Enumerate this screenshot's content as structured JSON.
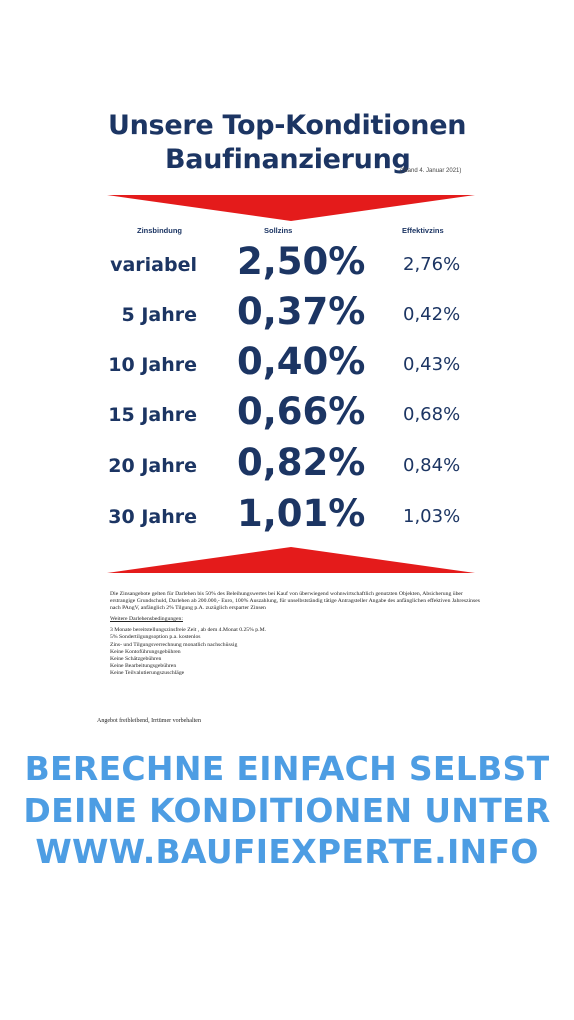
{
  "header": {
    "title_line1": "Unsere Top-Konditionen",
    "title_line2": "Baufinanzierung",
    "stand": "(Stand 4. Januar 2021)"
  },
  "colors": {
    "navy": "#1c3563",
    "red": "#e41b1b",
    "cta_blue": "#4d9de3"
  },
  "table": {
    "headers": {
      "term": "Zinsbindung",
      "soll": "Sollzins",
      "eff": "Effektivzins"
    },
    "rows": [
      {
        "term": "variabel",
        "soll": "2,50%",
        "eff": "2,76%"
      },
      {
        "term": "5 Jahre",
        "soll": "0,37%",
        "eff": "0,42%"
      },
      {
        "term": "10 Jahre",
        "soll": "0,40%",
        "eff": "0,43%"
      },
      {
        "term": "15 Jahre",
        "soll": "0,66%",
        "eff": "0,68%"
      },
      {
        "term": "20 Jahre",
        "soll": "0,82%",
        "eff": "0,84%"
      },
      {
        "term": "30 Jahre",
        "soll": "1,01%",
        "eff": "1,03%"
      }
    ]
  },
  "fineprint": {
    "intro": "Die Zinsangebote gelten für Darlehen bis 50% des Beleihungswertes bei Kauf von überwiegend wohnwirtschaftlich genutzten Objekten, Absicherung über erstrangige Grundschuld, Darlehen ab 200.000,- Euro, 100% Auszahlung, für unselbstständig tätige Antragsteller Angabe des anfänglichen effektiven Jahreszinses nach PAngV, anfänglich 2% Tilgung p.A. zuzüglich ersparter Zinsen",
    "subheading": "Weitere Darlehensbedingungen:",
    "items": [
      "3 Monate bereitstellungszinsfreie Zeit , ab dem 4.Monat 0.25% p.M.",
      "5% Sondertilgungsoption p.a. kostenlos",
      "Zins- und Tilgungsverrechnung monatlich nachschüssig",
      "Keine Kontoführungsgebühren",
      "Keine Schätzgebühren",
      "Keine Bearbeitungsgebühren",
      "Keine Teilvalutierungszuschläge"
    ],
    "disclaimer": "Angebot freibleibend, Irrtümer vorbehalten"
  },
  "cta": {
    "line1": "BERECHNE EINFACH SELBST",
    "line2": "DEINE KONDITIONEN UNTER",
    "line3": "WWW.BAUFIEXPERTE.INFO"
  }
}
